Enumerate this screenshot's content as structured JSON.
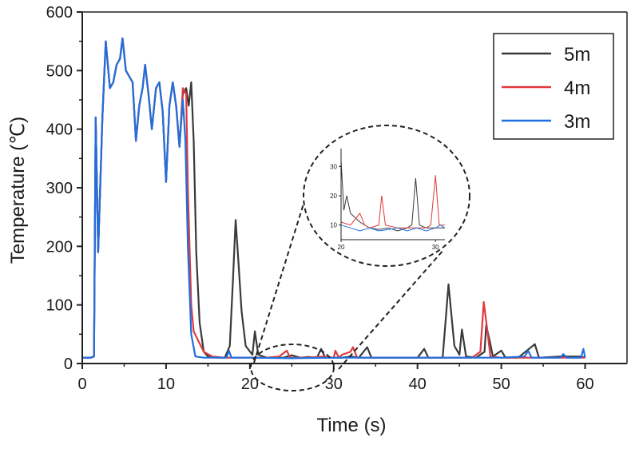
{
  "chart_data": {
    "type": "line",
    "title": "",
    "xlabel": "Time (s)",
    "ylabel": "Temperature (℃)",
    "xlim": [
      0,
      65
    ],
    "ylim": [
      0,
      600
    ],
    "xticks": [
      0,
      10,
      20,
      30,
      40,
      50,
      60
    ],
    "yticks": [
      0,
      100,
      200,
      300,
      400,
      500,
      600
    ],
    "grid": false,
    "legend": "top-right",
    "series": [
      {
        "name": "5m",
        "color": "#3a3a3a",
        "points": [
          [
            0,
            10
          ],
          [
            1,
            10
          ],
          [
            1.4,
            12
          ],
          [
            1.6,
            420
          ],
          [
            1.9,
            190
          ],
          [
            2.4,
            420
          ],
          [
            2.8,
            550
          ],
          [
            3.3,
            470
          ],
          [
            3.7,
            480
          ],
          [
            4.1,
            510
          ],
          [
            4.5,
            520
          ],
          [
            4.8,
            555
          ],
          [
            5.2,
            500
          ],
          [
            5.6,
            490
          ],
          [
            6.0,
            480
          ],
          [
            6.4,
            380
          ],
          [
            6.8,
            440
          ],
          [
            7.2,
            470
          ],
          [
            7.5,
            510
          ],
          [
            7.9,
            460
          ],
          [
            8.3,
            400
          ],
          [
            8.8,
            470
          ],
          [
            9.2,
            480
          ],
          [
            9.6,
            430
          ],
          [
            10.0,
            310
          ],
          [
            10.4,
            440
          ],
          [
            10.8,
            480
          ],
          [
            11.2,
            440
          ],
          [
            11.6,
            370
          ],
          [
            12.0,
            460
          ],
          [
            12.4,
            470
          ],
          [
            12.7,
            440
          ],
          [
            13.0,
            480
          ],
          [
            13.3,
            380
          ],
          [
            13.6,
            190
          ],
          [
            14.0,
            70
          ],
          [
            14.5,
            20
          ],
          [
            15.0,
            12
          ],
          [
            16.0,
            10
          ],
          [
            17.0,
            10
          ],
          [
            17.6,
            30
          ],
          [
            18.0,
            150
          ],
          [
            18.3,
            245
          ],
          [
            18.6,
            180
          ],
          [
            19.0,
            90
          ],
          [
            19.5,
            30
          ],
          [
            20.3,
            15
          ],
          [
            20.6,
            55
          ],
          [
            21.0,
            15
          ],
          [
            22.0,
            10
          ],
          [
            24.0,
            10
          ],
          [
            25.0,
            14
          ],
          [
            26.0,
            10
          ],
          [
            27.0,
            11
          ],
          [
            28.0,
            10
          ],
          [
            28.5,
            25
          ],
          [
            29.0,
            10
          ],
          [
            31.0,
            10
          ],
          [
            32.0,
            12
          ],
          [
            33.0,
            10
          ],
          [
            34.0,
            28
          ],
          [
            34.5,
            10
          ],
          [
            36.0,
            10
          ],
          [
            38.0,
            10
          ],
          [
            40.0,
            10
          ],
          [
            40.8,
            25
          ],
          [
            41.3,
            10
          ],
          [
            43.0,
            10
          ],
          [
            43.7,
            135
          ],
          [
            44.4,
            30
          ],
          [
            45.0,
            15
          ],
          [
            45.3,
            58
          ],
          [
            45.8,
            12
          ],
          [
            47.0,
            10
          ],
          [
            48.0,
            20
          ],
          [
            48.2,
            65
          ],
          [
            48.6,
            40
          ],
          [
            49.0,
            12
          ],
          [
            50.0,
            22
          ],
          [
            50.5,
            10
          ],
          [
            52.0,
            10
          ],
          [
            54.0,
            33
          ],
          [
            54.5,
            10
          ],
          [
            57.0,
            12
          ],
          [
            59.5,
            12
          ],
          [
            60.0,
            10
          ]
        ]
      },
      {
        "name": "4m",
        "color": "#e0393e",
        "points": [
          [
            0,
            10
          ],
          [
            1,
            10
          ],
          [
            1.4,
            12
          ],
          [
            1.6,
            420
          ],
          [
            1.9,
            190
          ],
          [
            2.4,
            420
          ],
          [
            2.8,
            550
          ],
          [
            3.3,
            470
          ],
          [
            3.7,
            480
          ],
          [
            4.1,
            510
          ],
          [
            4.5,
            520
          ],
          [
            4.8,
            555
          ],
          [
            5.2,
            500
          ],
          [
            5.6,
            490
          ],
          [
            6.0,
            480
          ],
          [
            6.4,
            380
          ],
          [
            6.8,
            440
          ],
          [
            7.2,
            470
          ],
          [
            7.5,
            510
          ],
          [
            7.9,
            460
          ],
          [
            8.3,
            400
          ],
          [
            8.8,
            470
          ],
          [
            9.2,
            480
          ],
          [
            9.6,
            430
          ],
          [
            10.0,
            310
          ],
          [
            10.4,
            440
          ],
          [
            10.8,
            480
          ],
          [
            11.2,
            440
          ],
          [
            11.6,
            370
          ],
          [
            12.0,
            470
          ],
          [
            12.4,
            460
          ],
          [
            12.6,
            300
          ],
          [
            13.0,
            100
          ],
          [
            13.3,
            55
          ],
          [
            13.8,
            40
          ],
          [
            14.5,
            20
          ],
          [
            15.5,
            12
          ],
          [
            17.0,
            10
          ],
          [
            20.0,
            10
          ],
          [
            22.0,
            10
          ],
          [
            23.5,
            12
          ],
          [
            24.4,
            22
          ],
          [
            24.8,
            10
          ],
          [
            27.0,
            10
          ],
          [
            28.8,
            12
          ],
          [
            30.0,
            10
          ],
          [
            30.2,
            22
          ],
          [
            30.6,
            10
          ],
          [
            31.0,
            15
          ],
          [
            32.0,
            20
          ],
          [
            32.3,
            28
          ],
          [
            32.8,
            10
          ],
          [
            35.0,
            10
          ],
          [
            38.0,
            10
          ],
          [
            41.0,
            10
          ],
          [
            44.0,
            10
          ],
          [
            46.5,
            10
          ],
          [
            47.5,
            20
          ],
          [
            47.9,
            105
          ],
          [
            48.3,
            60
          ],
          [
            48.7,
            12
          ],
          [
            50.0,
            10
          ],
          [
            55.0,
            10
          ],
          [
            60.0,
            10
          ]
        ]
      },
      {
        "name": "3m",
        "color": "#1f6fe0",
        "points": [
          [
            0,
            10
          ],
          [
            1,
            10
          ],
          [
            1.4,
            12
          ],
          [
            1.6,
            420
          ],
          [
            1.9,
            190
          ],
          [
            2.4,
            420
          ],
          [
            2.8,
            550
          ],
          [
            3.3,
            470
          ],
          [
            3.7,
            480
          ],
          [
            4.1,
            510
          ],
          [
            4.5,
            520
          ],
          [
            4.8,
            555
          ],
          [
            5.2,
            500
          ],
          [
            5.6,
            490
          ],
          [
            6.0,
            480
          ],
          [
            6.4,
            380
          ],
          [
            6.8,
            440
          ],
          [
            7.2,
            470
          ],
          [
            7.5,
            510
          ],
          [
            7.9,
            460
          ],
          [
            8.3,
            400
          ],
          [
            8.8,
            470
          ],
          [
            9.2,
            480
          ],
          [
            9.6,
            430
          ],
          [
            10.0,
            310
          ],
          [
            10.4,
            440
          ],
          [
            10.8,
            480
          ],
          [
            11.2,
            440
          ],
          [
            11.6,
            370
          ],
          [
            12.0,
            450
          ],
          [
            12.3,
            380
          ],
          [
            12.6,
            200
          ],
          [
            13.0,
            50
          ],
          [
            13.5,
            12
          ],
          [
            14.5,
            10
          ],
          [
            16.0,
            10
          ],
          [
            17.2,
            10
          ],
          [
            17.5,
            22
          ],
          [
            17.8,
            10
          ],
          [
            20.0,
            10
          ],
          [
            25.0,
            9
          ],
          [
            30.0,
            10
          ],
          [
            35.0,
            10
          ],
          [
            40.0,
            10
          ],
          [
            45.0,
            10
          ],
          [
            50.0,
            10
          ],
          [
            52.8,
            12
          ],
          [
            53.2,
            22
          ],
          [
            53.6,
            10
          ],
          [
            57.0,
            10
          ],
          [
            57.4,
            16
          ],
          [
            57.8,
            10
          ],
          [
            59.5,
            10
          ],
          [
            59.8,
            25
          ],
          [
            60.0,
            10
          ]
        ]
      }
    ],
    "inset": {
      "xlim": [
        20,
        31
      ],
      "ylim": [
        5,
        35
      ],
      "xticks": [
        20,
        30
      ],
      "yticks": [
        10,
        20,
        30
      ],
      "series": [
        {
          "name": "5m",
          "points": [
            [
              20,
              32
            ],
            [
              20.3,
              15
            ],
            [
              20.6,
              20
            ],
            [
              21,
              14
            ],
            [
              22,
              11
            ],
            [
              23,
              9
            ],
            [
              24,
              8.5
            ],
            [
              25,
              9
            ],
            [
              26,
              8
            ],
            [
              27,
              9
            ],
            [
              27.5,
              10
            ],
            [
              27.9,
              26
            ],
            [
              28.3,
              10
            ],
            [
              29,
              9
            ],
            [
              30,
              9
            ],
            [
              31,
              9
            ]
          ]
        },
        {
          "name": "4m",
          "points": [
            [
              20,
              11
            ],
            [
              21,
              10
            ],
            [
              22,
              14
            ],
            [
              22.5,
              10
            ],
            [
              23,
              9
            ],
            [
              24,
              10
            ],
            [
              24.3,
              20
            ],
            [
              24.7,
              10
            ],
            [
              26,
              9
            ],
            [
              28,
              9
            ],
            [
              29,
              9
            ],
            [
              29.5,
              10
            ],
            [
              30,
              27
            ],
            [
              30.4,
              10
            ],
            [
              31,
              10
            ]
          ]
        },
        {
          "name": "3m",
          "points": [
            [
              20,
              10
            ],
            [
              21,
              9
            ],
            [
              22,
              8
            ],
            [
              23,
              9
            ],
            [
              24,
              8
            ],
            [
              25,
              8.5
            ],
            [
              26,
              9
            ],
            [
              27,
              8
            ],
            [
              28,
              9
            ],
            [
              29,
              8
            ],
            [
              30,
              9
            ],
            [
              30.5,
              10
            ],
            [
              31,
              9
            ]
          ]
        }
      ]
    }
  }
}
